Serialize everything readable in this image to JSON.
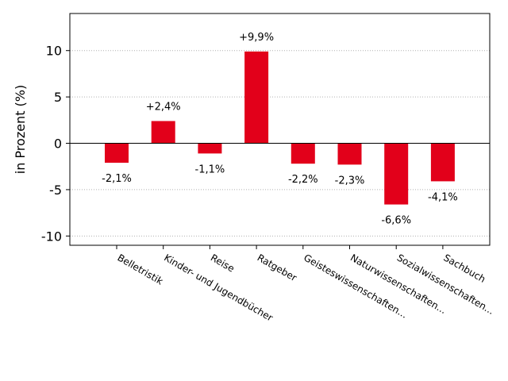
{
  "chart_data": {
    "type": "bar",
    "title": "",
    "xlabel": "",
    "ylabel": "in Prozent (%)",
    "categories": [
      "Belletristik",
      "Kinder- und Jugendbücher",
      "Reise",
      "Ratgeber",
      "Geisteswissenschaften...",
      "Naturwissenschaften...",
      "Sozialwissenschaften...",
      "Sachbuch"
    ],
    "values": [
      -2.1,
      2.4,
      -1.1,
      9.9,
      -2.2,
      -2.3,
      -6.6,
      -4.1
    ],
    "data_labels": [
      "-2,1%",
      "+2,4%",
      "-1,1%",
      "+9,9%",
      "-2,2%",
      "-2,3%",
      "-6,6%",
      "-4,1%"
    ],
    "ylim": [
      -11,
      14
    ],
    "yticks": [
      -10,
      -5,
      0,
      5,
      10
    ],
    "grid": true,
    "bar_color": "#e2001a"
  }
}
